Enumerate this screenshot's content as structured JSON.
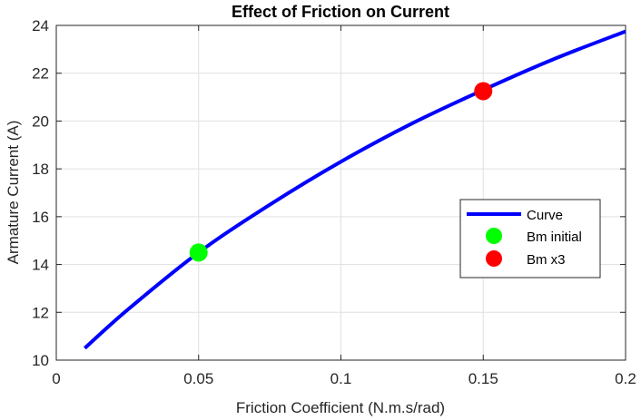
{
  "chart_data": {
    "type": "line",
    "title": "Effect of Friction on Current",
    "xlabel": "Friction Coefficient (N.m.s/rad)",
    "ylabel": "Armature Current (A)",
    "xlim": [
      0,
      0.2
    ],
    "ylim": [
      10,
      24
    ],
    "xticks": [
      "0",
      "0.05",
      "0.1",
      "0.15",
      "0.2"
    ],
    "yticks": [
      "10",
      "12",
      "14",
      "16",
      "18",
      "20",
      "22",
      "24"
    ],
    "grid": true,
    "legend_position": "right",
    "series": [
      {
        "name": "Curve",
        "kind": "line",
        "color": "#0000ff",
        "x": [
          0.01,
          0.025,
          0.05,
          0.075,
          0.1,
          0.125,
          0.15,
          0.175,
          0.2
        ],
        "y": [
          10.5,
          12.1,
          14.5,
          16.5,
          18.3,
          19.9,
          21.3,
          22.6,
          23.75
        ]
      },
      {
        "name": "Bm initial",
        "kind": "marker",
        "color": "#00ff00",
        "x": [
          0.05
        ],
        "y": [
          14.5
        ]
      },
      {
        "name": "Bm x3",
        "kind": "marker",
        "color": "#ff0000",
        "x": [
          0.15
        ],
        "y": [
          21.25
        ]
      }
    ]
  }
}
